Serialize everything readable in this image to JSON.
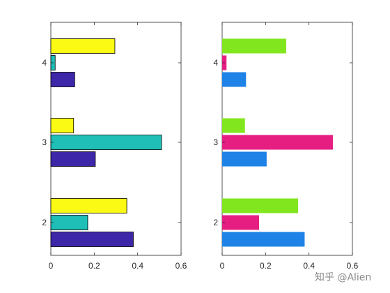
{
  "watermark": "知乎 @Alien",
  "chart_data": [
    {
      "type": "bar",
      "orientation": "horizontal",
      "categories": [
        "2",
        "3",
        "4"
      ],
      "xlim": [
        0,
        0.6
      ],
      "xticks": [
        "0",
        "0.2",
        "0.4",
        "0.6"
      ],
      "grid": false,
      "bar_edge": "#000000",
      "series": [
        {
          "color": "#3e26a8",
          "values": [
            0.38,
            0.205,
            0.11
          ]
        },
        {
          "color": "#1fbfb7",
          "values": [
            0.17,
            0.51,
            0.02
          ]
        },
        {
          "color": "#fafa14",
          "values": [
            0.35,
            0.105,
            0.295
          ]
        }
      ]
    },
    {
      "type": "bar",
      "orientation": "horizontal",
      "categories": [
        "2",
        "3",
        "4"
      ],
      "xlim": [
        0,
        0.6
      ],
      "xticks": [
        "0",
        "0.2",
        "0.4",
        "0.6"
      ],
      "grid": false,
      "bar_edge": "none",
      "series": [
        {
          "color": "#1e82e6",
          "values": [
            0.38,
            0.205,
            0.11
          ]
        },
        {
          "color": "#e61e82",
          "values": [
            0.17,
            0.51,
            0.02
          ]
        },
        {
          "color": "#82e61e",
          "values": [
            0.35,
            0.105,
            0.295
          ]
        }
      ]
    }
  ]
}
